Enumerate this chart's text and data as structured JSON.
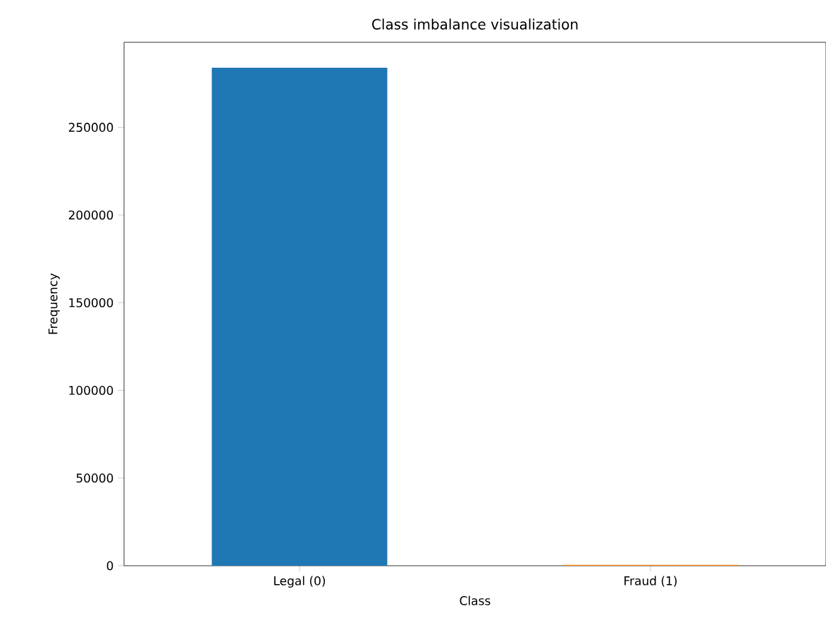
{
  "chart_data": {
    "type": "bar",
    "title": "Class imbalance visualization",
    "xlabel": "Class",
    "ylabel": "Frequency",
    "categories": [
      "Legal (0)",
      "Fraud (1)"
    ],
    "values": [
      284000,
      500
    ],
    "colors": [
      "#1f77b4",
      "#ff7f0e"
    ],
    "ylim": [
      0,
      298500
    ],
    "yticks": [
      0,
      50000,
      100000,
      150000,
      200000,
      250000
    ],
    "grid": false
  }
}
